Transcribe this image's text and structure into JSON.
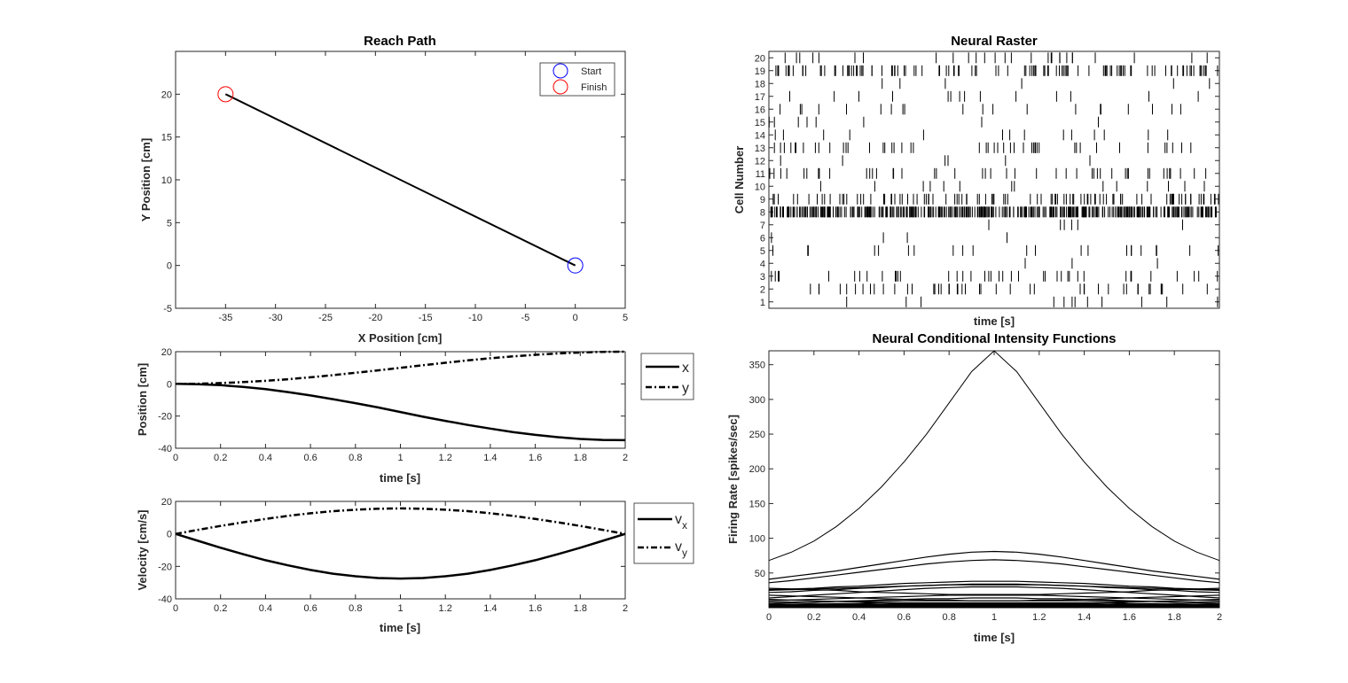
{
  "chart_data": [
    {
      "id": "reach",
      "type": "line",
      "title": "Reach Path",
      "xlabel": "X Position [cm]",
      "ylabel": "Y Position [cm]",
      "xlim": [
        -40,
        5
      ],
      "ylim": [
        -5,
        25
      ],
      "xticks": [
        -35,
        -30,
        -25,
        -20,
        -15,
        -10,
        -5,
        0,
        5
      ],
      "yticks": [
        -5,
        0,
        5,
        10,
        15,
        20
      ],
      "series": [
        {
          "name": "",
          "x": [
            0,
            -35
          ],
          "y": [
            0,
            20
          ],
          "color": "#000000"
        }
      ],
      "markers": [
        {
          "name": "Start",
          "x": 0,
          "y": 0,
          "color": "#0000ff"
        },
        {
          "name": "Finish",
          "x": -35,
          "y": 20,
          "color": "#ff0000"
        }
      ],
      "legend": [
        "Start",
        "Finish"
      ],
      "legend_position": "top-right",
      "grid": false
    },
    {
      "id": "position",
      "type": "line",
      "title": "",
      "xlabel": "time [s]",
      "ylabel": "Position [cm]",
      "xlim": [
        0,
        2
      ],
      "ylim": [
        -40,
        20
      ],
      "xticks": [
        0,
        0.2,
        0.4,
        0.6,
        0.8,
        1,
        1.2,
        1.4,
        1.6,
        1.8,
        2
      ],
      "yticks": [
        -40,
        -20,
        0,
        20
      ],
      "x": [
        0,
        0.1,
        0.2,
        0.3,
        0.4,
        0.5,
        0.6,
        0.7,
        0.8,
        0.9,
        1.0,
        1.1,
        1.2,
        1.3,
        1.4,
        1.5,
        1.6,
        1.7,
        1.8,
        1.9,
        2.0
      ],
      "series": [
        {
          "name": "x",
          "style": "solid",
          "values": [
            0,
            -0.2,
            -0.8,
            -1.9,
            -3.3,
            -5.1,
            -7.2,
            -9.5,
            -12.0,
            -14.6,
            -17.5,
            -20.4,
            -23.0,
            -25.5,
            -27.8,
            -29.9,
            -31.7,
            -33.1,
            -34.2,
            -34.8,
            -35
          ]
        },
        {
          "name": "y",
          "style": "dashdot",
          "values": [
            0,
            0.1,
            0.5,
            1.1,
            1.9,
            2.9,
            4.1,
            5.4,
            6.9,
            8.4,
            10.0,
            11.6,
            13.1,
            14.6,
            15.9,
            17.1,
            18.1,
            18.9,
            19.5,
            19.9,
            20
          ]
        }
      ],
      "legend": [
        "x",
        "y"
      ],
      "legend_position": "outside-right"
    },
    {
      "id": "velocity",
      "type": "line",
      "title": "",
      "xlabel": "time [s]",
      "ylabel": "Velocity [cm/s]",
      "xlim": [
        0,
        2
      ],
      "ylim": [
        -40,
        20
      ],
      "xticks": [
        0,
        0.2,
        0.4,
        0.6,
        0.8,
        1,
        1.2,
        1.4,
        1.6,
        1.8,
        2
      ],
      "yticks": [
        -40,
        -20,
        0,
        20
      ],
      "x": [
        0,
        0.1,
        0.2,
        0.3,
        0.4,
        0.5,
        0.6,
        0.7,
        0.8,
        0.9,
        1.0,
        1.1,
        1.2,
        1.3,
        1.4,
        1.5,
        1.6,
        1.7,
        1.8,
        1.9,
        2.0
      ],
      "series": [
        {
          "name": "v",
          "subscript": "x",
          "style": "solid",
          "values": [
            0,
            -4.3,
            -8.5,
            -12.5,
            -16.2,
            -19.4,
            -22.2,
            -24.5,
            -26.1,
            -27.2,
            -27.5,
            -27.2,
            -26.1,
            -24.5,
            -22.2,
            -19.4,
            -16.2,
            -12.5,
            -8.5,
            -4.3,
            0
          ]
        },
        {
          "name": "v",
          "subscript": "y",
          "style": "dashdot",
          "values": [
            0,
            2.5,
            4.9,
            7.1,
            9.2,
            11.1,
            12.7,
            14.0,
            14.9,
            15.5,
            15.7,
            15.5,
            14.9,
            14.0,
            12.7,
            11.1,
            9.2,
            7.1,
            4.9,
            2.5,
            0
          ]
        }
      ],
      "legend": [
        "vx",
        "vy"
      ],
      "legend_position": "outside-right"
    },
    {
      "id": "raster",
      "type": "scatter",
      "title": "Neural Raster",
      "xlabel": "time [s]",
      "ylabel": "Cell Number",
      "xlim": [
        0,
        2
      ],
      "ylim": [
        0.5,
        20.5
      ],
      "yticks": [
        1,
        2,
        3,
        4,
        5,
        6,
        7,
        8,
        9,
        10,
        11,
        12,
        13,
        14,
        15,
        16,
        17,
        18,
        19,
        20
      ],
      "xticks": [],
      "spike_counts": [
        12,
        45,
        40,
        3,
        22,
        4,
        6,
        420,
        100,
        14,
        45,
        6,
        48,
        14,
        8,
        20,
        14,
        6,
        110,
        28
      ],
      "mark": "vertical-tick"
    },
    {
      "id": "cif",
      "type": "line",
      "title": "Neural Conditional Intensity Functions",
      "xlabel": "time [s]",
      "ylabel": "Firing Rate [spikes/sec]",
      "xlim": [
        0,
        2
      ],
      "ylim": [
        0,
        370
      ],
      "xticks": [
        0,
        0.2,
        0.4,
        0.6,
        0.8,
        1,
        1.2,
        1.4,
        1.6,
        1.8,
        2
      ],
      "yticks": [
        50,
        100,
        150,
        200,
        250,
        300,
        350
      ],
      "x": [
        0,
        0.1,
        0.2,
        0.3,
        0.4,
        0.5,
        0.6,
        0.7,
        0.8,
        0.9,
        1.0,
        1.1,
        1.2,
        1.3,
        1.4,
        1.5,
        1.6,
        1.7,
        1.8,
        1.9,
        2.0
      ],
      "series": [
        {
          "values": [
            68,
            80,
            96,
            117,
            143,
            174,
            210,
            250,
            295,
            340,
            370,
            340,
            295,
            250,
            210,
            174,
            143,
            117,
            96,
            80,
            68
          ]
        },
        {
          "values": [
            41,
            45,
            49,
            53,
            58,
            63,
            68,
            73,
            77,
            80,
            81,
            80,
            77,
            73,
            68,
            63,
            58,
            53,
            49,
            45,
            41
          ]
        },
        {
          "values": [
            36,
            39,
            43,
            47,
            51,
            55,
            59,
            63,
            66,
            68,
            69,
            68,
            66,
            63,
            59,
            55,
            51,
            47,
            43,
            39,
            36
          ]
        },
        {
          "values": [
            26,
            27,
            28,
            30,
            31,
            33,
            35,
            36,
            37,
            38,
            38,
            38,
            37,
            36,
            35,
            33,
            31,
            30,
            28,
            27,
            26
          ]
        },
        {
          "values": [
            22,
            23,
            25,
            26,
            28,
            29,
            31,
            32,
            33,
            34,
            34,
            34,
            33,
            32,
            31,
            29,
            28,
            26,
            25,
            23,
            22
          ]
        },
        {
          "values": [
            25,
            26,
            27,
            28,
            29,
            30,
            31,
            32,
            33,
            33,
            33,
            33,
            33,
            32,
            31,
            30,
            29,
            28,
            27,
            26,
            25
          ]
        },
        {
          "values": [
            14,
            16,
            18,
            20,
            22,
            24,
            26,
            28,
            29,
            30,
            30,
            30,
            29,
            28,
            26,
            24,
            22,
            20,
            18,
            16,
            14
          ]
        },
        {
          "values": [
            28,
            27,
            26,
            25,
            23,
            22,
            21,
            20,
            19,
            19,
            19,
            19,
            19,
            20,
            21,
            22,
            23,
            25,
            26,
            27,
            28
          ]
        },
        {
          "values": [
            18,
            17,
            16,
            15,
            14,
            13,
            12,
            11,
            11,
            10,
            10,
            10,
            11,
            11,
            12,
            13,
            14,
            15,
            16,
            17,
            18
          ]
        },
        {
          "values": [
            10,
            11,
            12,
            13,
            14,
            15,
            16,
            17,
            18,
            18,
            18,
            18,
            18,
            17,
            16,
            15,
            14,
            13,
            12,
            11,
            10
          ]
        },
        {
          "values": [
            6,
            7,
            8,
            9,
            10,
            11,
            12,
            13,
            13,
            14,
            14,
            14,
            13,
            13,
            12,
            11,
            10,
            9,
            8,
            7,
            6
          ]
        },
        {
          "values": [
            12,
            11,
            10,
            9,
            8,
            7,
            6,
            6,
            5,
            5,
            5,
            5,
            5,
            6,
            6,
            7,
            8,
            9,
            10,
            11,
            12
          ]
        },
        {
          "values": [
            8,
            8,
            8,
            9,
            9,
            9,
            10,
            10,
            10,
            10,
            10,
            10,
            10,
            10,
            10,
            9,
            9,
            9,
            8,
            8,
            8
          ]
        },
        {
          "values": [
            5,
            5,
            6,
            6,
            6,
            7,
            7,
            7,
            7,
            7,
            7,
            7,
            7,
            7,
            7,
            7,
            6,
            6,
            6,
            5,
            5
          ]
        },
        {
          "values": [
            4,
            4,
            4,
            5,
            5,
            5,
            5,
            6,
            6,
            6,
            6,
            6,
            6,
            6,
            5,
            5,
            5,
            5,
            4,
            4,
            4
          ]
        },
        {
          "values": [
            3,
            3,
            3,
            3,
            4,
            4,
            4,
            4,
            4,
            4,
            4,
            4,
            4,
            4,
            4,
            4,
            4,
            3,
            3,
            3,
            3
          ]
        },
        {
          "values": [
            2,
            2,
            2,
            2,
            3,
            3,
            3,
            3,
            3,
            3,
            3,
            3,
            3,
            3,
            3,
            3,
            3,
            2,
            2,
            2,
            2
          ]
        },
        {
          "values": [
            1.5,
            1.5,
            1.5,
            2,
            2,
            2,
            2,
            2,
            2,
            2,
            2,
            2,
            2,
            2,
            2,
            2,
            2,
            2,
            1.5,
            1.5,
            1.5
          ]
        },
        {
          "values": [
            1,
            1,
            1,
            1,
            1,
            1.5,
            1.5,
            1.5,
            1.5,
            1.5,
            1.5,
            1.5,
            1.5,
            1.5,
            1.5,
            1.5,
            1,
            1,
            1,
            1,
            1
          ]
        },
        {
          "values": [
            0.5,
            0.5,
            0.5,
            0.5,
            0.5,
            0.5,
            0.5,
            0.5,
            0.5,
            0.5,
            0.5,
            0.5,
            0.5,
            0.5,
            0.5,
            0.5,
            0.5,
            0.5,
            0.5,
            0.5,
            0.5
          ]
        }
      ],
      "color": "#000000",
      "grid": false
    }
  ]
}
